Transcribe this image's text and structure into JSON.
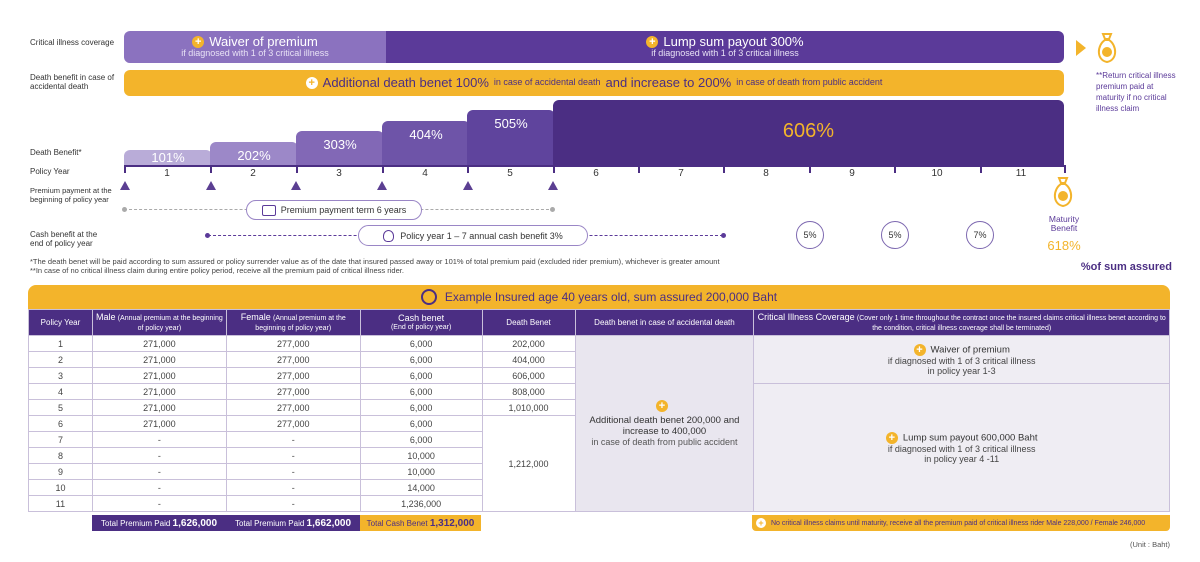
{
  "left_labels": {
    "critical_illness": "Critical illness coverage",
    "death_accidental": "Death benefit in case of accidental death",
    "death_benefit": "Death Benefit*",
    "policy_year": "Policy Year",
    "premium_payment": "Premium payment at the beginning of policy year",
    "cash_benefit": "Cash benefit at the end of policy year"
  },
  "waiver_bar": {
    "title": "Waiver of premium",
    "subtitle": "if diagnosed with 1 of 3 critical illness"
  },
  "lump_bar": {
    "title": "Lump sum payout 300%",
    "subtitle": "if diagnosed with 1 of 3 critical illness"
  },
  "accident_bar": {
    "p1": "Additional death benet 100%",
    "p2": "in case of accidental death",
    "p3": "and increase to 200%",
    "p4": "in case of death from public accident"
  },
  "return_note": "**Return critical illness premium paid at maturity if no critical illness claim",
  "steps": [
    "101%",
    "202%",
    "303%",
    "404%",
    "505%",
    "606%"
  ],
  "years": [
    "1",
    "2",
    "3",
    "4",
    "5",
    "6",
    "7",
    "8",
    "9",
    "10",
    "11"
  ],
  "premium_term": "Premium payment term 6 years",
  "cash_term": "Policy year 1 – 7 annual cash benefit 3%",
  "cash_circles": [
    "5%",
    "5%",
    "7%"
  ],
  "maturity": {
    "label": "Maturity Benefit",
    "value": "618%"
  },
  "sum_assured_label": "%of sum assured",
  "footnote1": "*The death benet will be paid according to sum assured or policy surrender value as of the date that insured passed away or 101% of total premium paid (excluded rider premium), whichever is greater amount",
  "footnote2": "**In case of no critical illness claim during entire policy period, receive all the premium paid of critical illness rider.",
  "example_title": "Example Insured age 40 years old, sum assured 200,000 Baht",
  "table": {
    "headers": {
      "policy_year": "Policy Year",
      "male": "Male",
      "male_sub": "(Annual premium at the beginning of policy year)",
      "female": "Female",
      "female_sub": "(Annual premium at the beginning of policy year)",
      "cash": "Cash benet",
      "cash_sub": "(End of policy year)",
      "death": "Death Benet",
      "death_acc": "Death benet in case of accidental death",
      "ci": "Critical Illness Coverage",
      "ci_sub": "(Cover only 1 time throughout the contract once the insured claims critical illness benet according to the condition, critical illness coverage shall be terminated)"
    },
    "rows": [
      {
        "year": "1",
        "male": "271,000",
        "female": "277,000",
        "cash": "6,000"
      },
      {
        "year": "2",
        "male": "271,000",
        "female": "277,000",
        "cash": "6,000"
      },
      {
        "year": "3",
        "male": "271,000",
        "female": "277,000",
        "cash": "6,000"
      },
      {
        "year": "4",
        "male": "271,000",
        "female": "277,000",
        "cash": "6,000"
      },
      {
        "year": "5",
        "male": "271,000",
        "female": "277,000",
        "cash": "6,000"
      },
      {
        "year": "6",
        "male": "271,000",
        "female": "277,000",
        "cash": "6,000"
      },
      {
        "year": "7",
        "male": "-",
        "female": "-",
        "cash": "6,000"
      },
      {
        "year": "8",
        "male": "-",
        "female": "-",
        "cash": "10,000"
      },
      {
        "year": "9",
        "male": "-",
        "female": "-",
        "cash": "10,000"
      },
      {
        "year": "10",
        "male": "-",
        "female": "-",
        "cash": "14,000"
      },
      {
        "year": "11",
        "male": "-",
        "female": "-",
        "cash": "1,236,000"
      }
    ],
    "death_values": [
      "202,000",
      "404,000",
      "606,000",
      "808,000",
      "1,010,000"
    ],
    "death_merged": "1,212,000",
    "accident_text1": "Additional death benet 200,000 and increase to 400,000",
    "accident_text2": "in case of death from public accident",
    "ci_waiver_title": "Waiver of premium",
    "ci_waiver_sub1": "if diagnosed with 1 of 3 critical illness",
    "ci_waiver_sub2": "in policy year 1-3",
    "ci_lump_title": "Lump sum payout 600,000 Baht",
    "ci_lump_sub1": "if diagnosed with 1 of 3 critical illness",
    "ci_lump_sub2": "in policy year 4 -11"
  },
  "totals": {
    "male_label": "Total Premium Paid",
    "male_value": "1,626,000",
    "female_label": "Total Premium Paid",
    "female_value": "1,662,000",
    "cash_label": "Total Cash Benet",
    "cash_value": "1,312,000"
  },
  "ci_footer": "No critical illness claims until maturity, receive all the premium paid of critical illness rider Male 228,000 / Female 246,000",
  "unit": "(Unit : Baht)",
  "colors": {
    "purple_dark": "#4b2e83",
    "purple_mid": "#8b72bf",
    "purple_light": "#b9acd8",
    "gold": "#f3b42b"
  }
}
